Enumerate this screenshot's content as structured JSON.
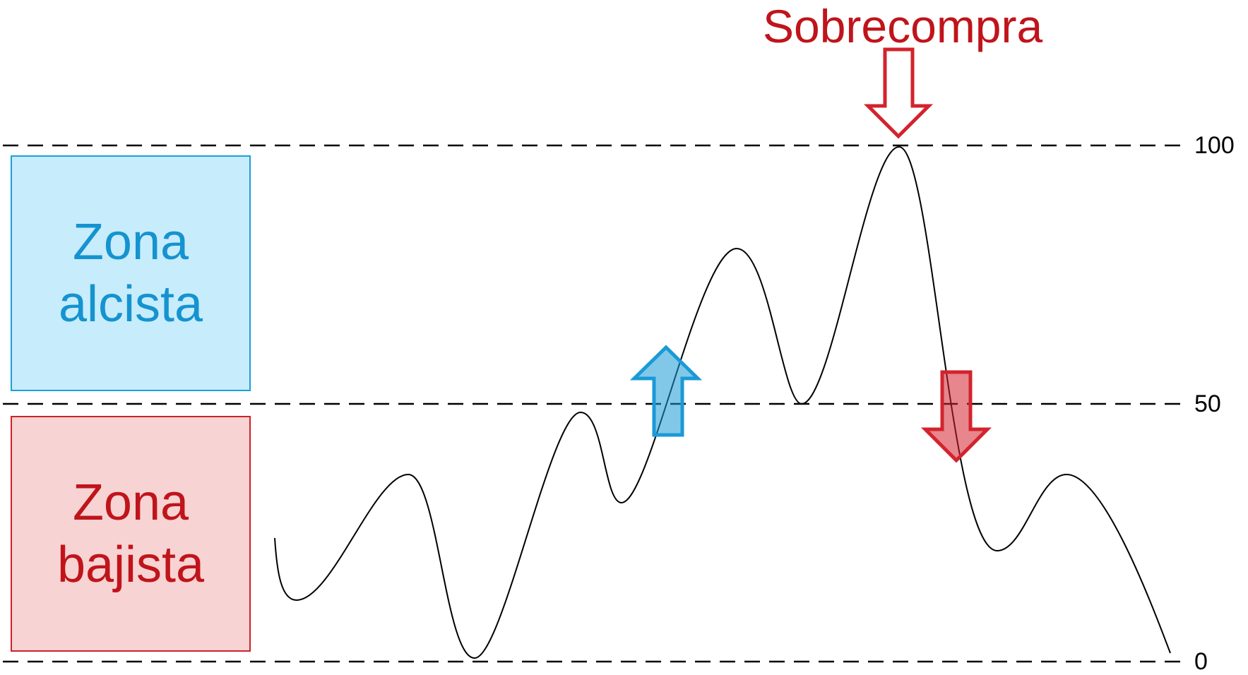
{
  "labels": {
    "top_annotation": "Sobrecompra",
    "bull_zone_line1": "Zona",
    "bull_zone_line2": "alcista",
    "bear_zone_line1": "Zona",
    "bear_zone_line2": "bajista"
  },
  "levels": [
    "100",
    "50",
    "0"
  ],
  "colors": {
    "bull_fill": "#c7ecfb",
    "bull_text": "#1593d0",
    "bear_fill": "#f7d3d3",
    "bear_text": "#c0141b",
    "arrow_blue": "#1a9ad6",
    "arrow_red": "#d3232d",
    "line": "#000000"
  },
  "icons": [
    "arrow-down-outline-icon",
    "arrow-up-blue-icon",
    "arrow-down-red-icon"
  ]
}
